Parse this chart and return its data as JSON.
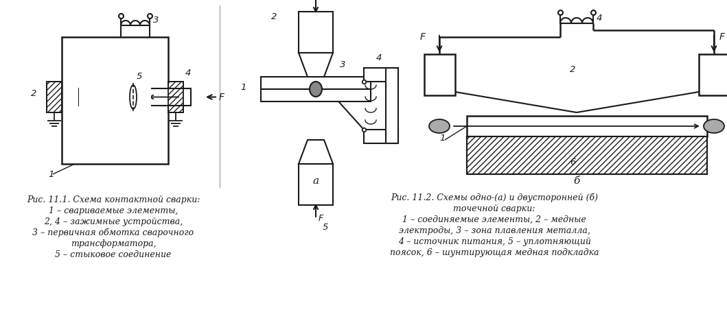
{
  "fig_width": 10.59,
  "fig_height": 4.56,
  "bg_color": "#ffffff",
  "caption1_title": "Рис. 11.1. Схема контактной сварки:",
  "caption1_lines": [
    "1 – свариваемые элементы,",
    "2, 4 – зажимные устройства,",
    "3 – первичная обмотка сварочного",
    "трансформатора,",
    "5 – стыковое соединение"
  ],
  "caption2_title": "Рис. 11.2. Схемы одно-(а) и двусторонней (б)",
  "caption2_lines": [
    "точечной сварки:",
    "1 – соединяемые элементы, 2 – медные",
    "электроды, 3 – зона плавления металла,",
    "4 – источник питания, 5 – уплотняющий",
    "поясок, 6 – шунтирующая медная подкладка"
  ],
  "lc": "#1a1a1a",
  "tc": "#1a1a1a"
}
